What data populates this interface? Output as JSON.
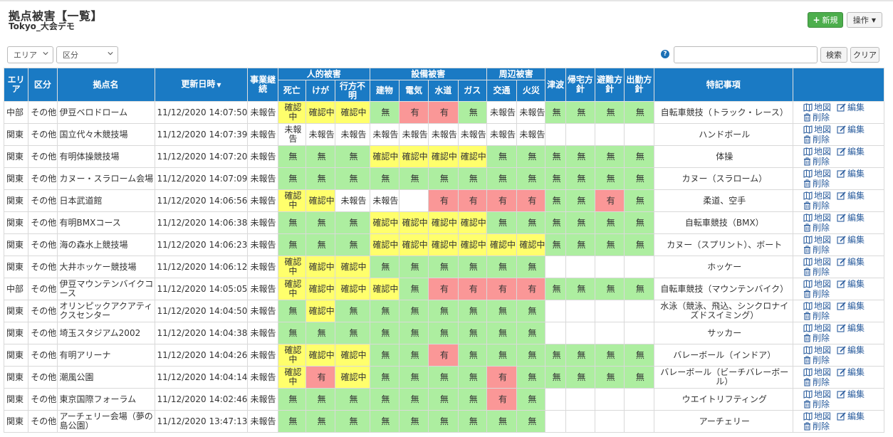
{
  "header": {
    "title": "拠点被害【一覧】",
    "subtitle": "Tokyo_大会デモ"
  },
  "toolbar": {
    "new_label": "新規",
    "ops_label": "操作",
    "search_label": "検索",
    "clear_label": "クリア",
    "search_value": ""
  },
  "filters": {
    "area_label": "エリア",
    "kubun_label": "区分"
  },
  "help_glyph": "?",
  "table": {
    "headers": {
      "area": "エリア",
      "kubun": "区分",
      "name": "拠点名",
      "updated": "更新日時",
      "continuity": "事業継続",
      "human": "人的被害",
      "death": "死亡",
      "injury": "けが",
      "missing": "行方不明",
      "facility": "設備被害",
      "building": "建物",
      "electric": "電気",
      "water": "水道",
      "gas": "ガス",
      "surrounding": "周辺被害",
      "traffic": "交通",
      "fire": "火災",
      "tsunami": "津波",
      "home": "帰宅方針",
      "evac": "避難方針",
      "work": "出勤方針",
      "notes": "特記事項"
    },
    "actions": {
      "map": "地図",
      "edit": "編集",
      "delete": "削除"
    },
    "status_colors": {
      "g": "#adeea0",
      "y": "#ffff6c",
      "r": "#fa9797",
      "w": "#ffffff"
    },
    "rows": [
      {
        "area": "中部",
        "kubun": "その他",
        "name": "伊豆ベロドローム",
        "updated": "11/12/2020 14:07:50",
        "continuity": "未報告",
        "status": [
          [
            "確認中",
            "y"
          ],
          [
            "確認中",
            "y"
          ],
          [
            "確認中",
            "y"
          ],
          [
            "無",
            "g"
          ],
          [
            "有",
            "r"
          ],
          [
            "有",
            "r"
          ],
          [
            "無",
            "g"
          ],
          [
            "未報告",
            "w"
          ],
          [
            "未報告",
            "w"
          ],
          [
            "無",
            "g"
          ],
          [
            "無",
            "g"
          ],
          [
            "無",
            "g"
          ],
          [
            "無",
            "g"
          ]
        ],
        "note": "自転車競技（トラック・レース）"
      },
      {
        "area": "関東",
        "kubun": "その他",
        "name": "国立代々木競技場",
        "updated": "11/12/2020 14:07:39",
        "continuity": "未報告",
        "status": [
          [
            "未報告",
            "w"
          ],
          [
            "未報告",
            "w"
          ],
          [
            "未報告",
            "w"
          ],
          [
            "未報告",
            "w"
          ],
          [
            "未報告",
            "w"
          ],
          [
            "未報告",
            "w"
          ],
          [
            "未報告",
            "w"
          ],
          [
            "未報告",
            "w"
          ],
          [
            "未報告",
            "w"
          ],
          [
            "",
            "w"
          ],
          [
            "",
            "w"
          ],
          [
            "",
            "w"
          ],
          [
            "",
            "w"
          ]
        ],
        "note": "ハンドボール"
      },
      {
        "area": "関東",
        "kubun": "その他",
        "name": "有明体操競技場",
        "updated": "11/12/2020 14:07:20",
        "continuity": "未報告",
        "status": [
          [
            "無",
            "g"
          ],
          [
            "無",
            "g"
          ],
          [
            "無",
            "g"
          ],
          [
            "確認中",
            "y"
          ],
          [
            "確認中",
            "y"
          ],
          [
            "確認中",
            "y"
          ],
          [
            "確認中",
            "y"
          ],
          [
            "無",
            "g"
          ],
          [
            "無",
            "g"
          ],
          [
            "無",
            "g"
          ],
          [
            "無",
            "g"
          ],
          [
            "無",
            "g"
          ],
          [
            "無",
            "g"
          ]
        ],
        "note": "体操"
      },
      {
        "area": "関東",
        "kubun": "その他",
        "name": "カヌー・スラローム会場",
        "updated": "11/12/2020 14:07:09",
        "continuity": "未報告",
        "status": [
          [
            "無",
            "g"
          ],
          [
            "無",
            "g"
          ],
          [
            "無",
            "g"
          ],
          [
            "無",
            "g"
          ],
          [
            "無",
            "g"
          ],
          [
            "無",
            "g"
          ],
          [
            "無",
            "g"
          ],
          [
            "無",
            "g"
          ],
          [
            "無",
            "g"
          ],
          [
            "無",
            "g"
          ],
          [
            "無",
            "g"
          ],
          [
            "無",
            "g"
          ],
          [
            "無",
            "g"
          ]
        ],
        "note": "カヌー（スラローム）"
      },
      {
        "area": "関東",
        "kubun": "その他",
        "name": "日本武道館",
        "updated": "11/12/2020 14:06:56",
        "continuity": "未報告",
        "status": [
          [
            "確認中",
            "y"
          ],
          [
            "確認中",
            "y"
          ],
          [
            "未報告",
            "w"
          ],
          [
            "未報告",
            "w"
          ],
          [
            "",
            "w"
          ],
          [
            "有",
            "r"
          ],
          [
            "有",
            "r"
          ],
          [
            "有",
            "r"
          ],
          [
            "有",
            "r"
          ],
          [
            "無",
            "g"
          ],
          [
            "無",
            "g"
          ],
          [
            "有",
            "r"
          ],
          [
            "無",
            "g"
          ]
        ],
        "note": "柔道、空手"
      },
      {
        "area": "関東",
        "kubun": "その他",
        "name": "有明BMXコース",
        "updated": "11/12/2020 14:06:38",
        "continuity": "未報告",
        "status": [
          [
            "無",
            "g"
          ],
          [
            "無",
            "g"
          ],
          [
            "無",
            "g"
          ],
          [
            "確認中",
            "y"
          ],
          [
            "確認中",
            "y"
          ],
          [
            "確認中",
            "y"
          ],
          [
            "確認中",
            "y"
          ],
          [
            "無",
            "g"
          ],
          [
            "無",
            "g"
          ],
          [
            "無",
            "g"
          ],
          [
            "無",
            "g"
          ],
          [
            "無",
            "g"
          ],
          [
            "無",
            "g"
          ]
        ],
        "note": "自転車競技（BMX）"
      },
      {
        "area": "関東",
        "kubun": "その他",
        "name": "海の森水上競技場",
        "updated": "11/12/2020 14:06:23",
        "continuity": "未報告",
        "status": [
          [
            "無",
            "g"
          ],
          [
            "無",
            "g"
          ],
          [
            "無",
            "g"
          ],
          [
            "確認中",
            "y"
          ],
          [
            "確認中",
            "y"
          ],
          [
            "確認中",
            "y"
          ],
          [
            "確認中",
            "y"
          ],
          [
            "確認中",
            "y"
          ],
          [
            "確認中",
            "y"
          ],
          [
            "無",
            "g"
          ],
          [
            "無",
            "g"
          ],
          [
            "無",
            "g"
          ],
          [
            "無",
            "g"
          ]
        ],
        "note": "カヌー（スプリント）、ボート"
      },
      {
        "area": "関東",
        "kubun": "その他",
        "name": "大井ホッケー競技場",
        "updated": "11/12/2020 14:06:12",
        "continuity": "未報告",
        "status": [
          [
            "確認中",
            "y"
          ],
          [
            "確認中",
            "y"
          ],
          [
            "確認中",
            "y"
          ],
          [
            "無",
            "g"
          ],
          [
            "無",
            "g"
          ],
          [
            "無",
            "g"
          ],
          [
            "無",
            "g"
          ],
          [
            "無",
            "g"
          ],
          [
            "無",
            "g"
          ],
          [
            "",
            "w"
          ],
          [
            "",
            "w"
          ],
          [
            "",
            "w"
          ],
          [
            "",
            "w"
          ]
        ],
        "note": "ホッケー"
      },
      {
        "area": "中部",
        "kubun": "その他",
        "name": "伊豆マウンテンバイクコース",
        "updated": "11/12/2020 14:05:05",
        "continuity": "未報告",
        "status": [
          [
            "確認中",
            "y"
          ],
          [
            "確認中",
            "y"
          ],
          [
            "確認中",
            "y"
          ],
          [
            "確認中",
            "y"
          ],
          [
            "無",
            "g"
          ],
          [
            "有",
            "r"
          ],
          [
            "有",
            "r"
          ],
          [
            "有",
            "r"
          ],
          [
            "有",
            "r"
          ],
          [
            "無",
            "g"
          ],
          [
            "無",
            "g"
          ],
          [
            "無",
            "g"
          ],
          [
            "無",
            "g"
          ]
        ],
        "note": "自転車競技（マウンテンバイク）"
      },
      {
        "area": "関東",
        "kubun": "その他",
        "name": "オリンピックアクアティクスセンター",
        "updated": "11/12/2020 14:04:50",
        "continuity": "未報告",
        "status": [
          [
            "無",
            "g"
          ],
          [
            "確認中",
            "y"
          ],
          [
            "無",
            "g"
          ],
          [
            "無",
            "g"
          ],
          [
            "無",
            "g"
          ],
          [
            "無",
            "g"
          ],
          [
            "無",
            "g"
          ],
          [
            "無",
            "g"
          ],
          [
            "無",
            "g"
          ],
          [
            "",
            "w"
          ],
          [
            "",
            "w"
          ],
          [
            "",
            "w"
          ],
          [
            "",
            "w"
          ]
        ],
        "note": "水泳（競泳、飛込、シンクロナイズドスイミング）"
      },
      {
        "area": "関東",
        "kubun": "その他",
        "name": "埼玉スタジアム2002",
        "updated": "11/12/2020 14:04:38",
        "continuity": "未報告",
        "status": [
          [
            "無",
            "g"
          ],
          [
            "無",
            "g"
          ],
          [
            "無",
            "g"
          ],
          [
            "無",
            "g"
          ],
          [
            "無",
            "g"
          ],
          [
            "無",
            "g"
          ],
          [
            "無",
            "g"
          ],
          [
            "無",
            "g"
          ],
          [
            "無",
            "g"
          ],
          [
            "",
            "w"
          ],
          [
            "",
            "w"
          ],
          [
            "",
            "w"
          ],
          [
            "",
            "w"
          ]
        ],
        "note": "サッカー"
      },
      {
        "area": "関東",
        "kubun": "その他",
        "name": "有明アリーナ",
        "updated": "11/12/2020 14:04:26",
        "continuity": "未報告",
        "status": [
          [
            "確認中",
            "y"
          ],
          [
            "確認中",
            "y"
          ],
          [
            "確認中",
            "y"
          ],
          [
            "無",
            "g"
          ],
          [
            "無",
            "g"
          ],
          [
            "有",
            "r"
          ],
          [
            "無",
            "g"
          ],
          [
            "無",
            "g"
          ],
          [
            "無",
            "g"
          ],
          [
            "無",
            "g"
          ],
          [
            "無",
            "g"
          ],
          [
            "無",
            "g"
          ],
          [
            "無",
            "g"
          ]
        ],
        "note": "バレーボール（インドア）"
      },
      {
        "area": "関東",
        "kubun": "その他",
        "name": "潮風公園",
        "updated": "11/12/2020 14:04:14",
        "continuity": "未報告",
        "status": [
          [
            "確認中",
            "y"
          ],
          [
            "有",
            "r"
          ],
          [
            "確認中",
            "y"
          ],
          [
            "無",
            "g"
          ],
          [
            "無",
            "g"
          ],
          [
            "無",
            "g"
          ],
          [
            "無",
            "g"
          ],
          [
            "有",
            "r"
          ],
          [
            "無",
            "g"
          ],
          [
            "無",
            "g"
          ],
          [
            "無",
            "g"
          ],
          [
            "無",
            "g"
          ],
          [
            "無",
            "g"
          ]
        ],
        "note": "バレーボール（ビーチバレーボール）"
      },
      {
        "area": "関東",
        "kubun": "その他",
        "name": "東京国際フォーラム",
        "updated": "11/12/2020 14:02:46",
        "continuity": "未報告",
        "status": [
          [
            "無",
            "g"
          ],
          [
            "無",
            "g"
          ],
          [
            "無",
            "g"
          ],
          [
            "無",
            "g"
          ],
          [
            "無",
            "g"
          ],
          [
            "無",
            "g"
          ],
          [
            "無",
            "g"
          ],
          [
            "有",
            "r"
          ],
          [
            "無",
            "g"
          ],
          [
            "",
            "w"
          ],
          [
            "",
            "w"
          ],
          [
            "",
            "w"
          ],
          [
            "",
            "w"
          ]
        ],
        "note": "ウエイトリフティング"
      },
      {
        "area": "関東",
        "kubun": "その他",
        "name": "アーチェリー会場（夢の島公園）",
        "updated": "11/12/2020 13:47:13",
        "continuity": "未報告",
        "status": [
          [
            "無",
            "g"
          ],
          [
            "無",
            "g"
          ],
          [
            "無",
            "g"
          ],
          [
            "無",
            "g"
          ],
          [
            "無",
            "g"
          ],
          [
            "無",
            "g"
          ],
          [
            "無",
            "g"
          ],
          [
            "無",
            "g"
          ],
          [
            "無",
            "g"
          ],
          [
            "",
            "w"
          ],
          [
            "",
            "w"
          ],
          [
            "",
            "w"
          ],
          [
            "",
            "w"
          ]
        ],
        "note": "アーチェリー"
      }
    ]
  }
}
